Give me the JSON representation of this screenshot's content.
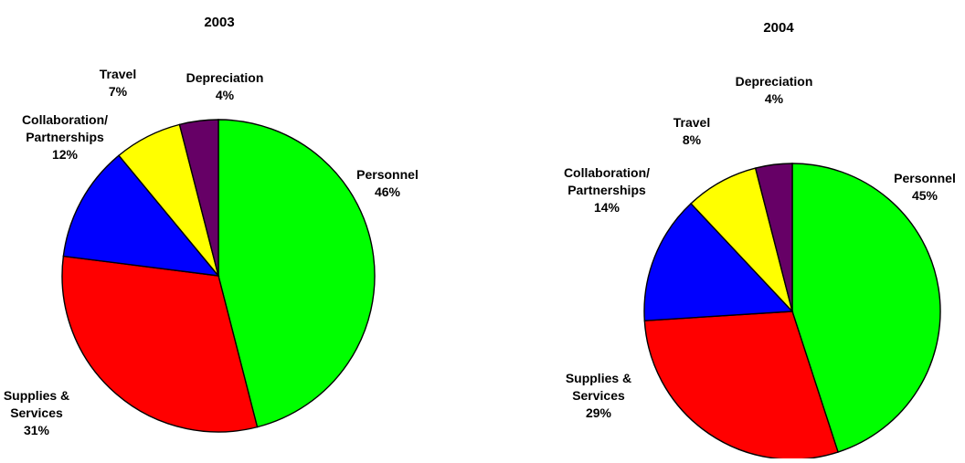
{
  "chart_data": [
    {
      "type": "pie",
      "title": "2003",
      "slices": [
        {
          "category": "Personnel",
          "value": 46,
          "label_lines": [
            "Personnel",
            "46%"
          ],
          "color": "#00FF00"
        },
        {
          "category": "Supplies & Services",
          "value": 31,
          "label_lines": [
            "Supplies &",
            "Services",
            "31%"
          ],
          "color": "#FF0000"
        },
        {
          "category": "Collaboration/ Partnerships",
          "value": 12,
          "label_lines": [
            "Collaboration/",
            "Partnerships",
            "12%"
          ],
          "color": "#0000FF"
        },
        {
          "category": "Travel",
          "value": 7,
          "label_lines": [
            "Travel",
            "7%"
          ],
          "color": "#FFFF00"
        },
        {
          "category": "Depreciation",
          "value": 4,
          "label_lines": [
            "Depreciation",
            "4%"
          ],
          "color": "#660066"
        }
      ]
    },
    {
      "type": "pie",
      "title": "2004",
      "slices": [
        {
          "category": "Personnel",
          "value": 45,
          "label_lines": [
            "Personnel",
            "45%"
          ],
          "color": "#00FF00"
        },
        {
          "category": "Supplies & Services",
          "value": 29,
          "label_lines": [
            "Supplies &",
            "Services",
            "29%"
          ],
          "color": "#FF0000"
        },
        {
          "category": "Collaboration/ Partnerships",
          "value": 14,
          "label_lines": [
            "Collaboration/",
            "Partnerships",
            "14%"
          ],
          "color": "#0000FF"
        },
        {
          "category": "Travel",
          "value": 8,
          "label_lines": [
            "Travel",
            "8%"
          ],
          "color": "#FFFF00"
        },
        {
          "category": "Depreciation",
          "value": 4,
          "label_lines": [
            "Depreciation",
            "4%"
          ],
          "color": "#660066"
        }
      ]
    }
  ]
}
